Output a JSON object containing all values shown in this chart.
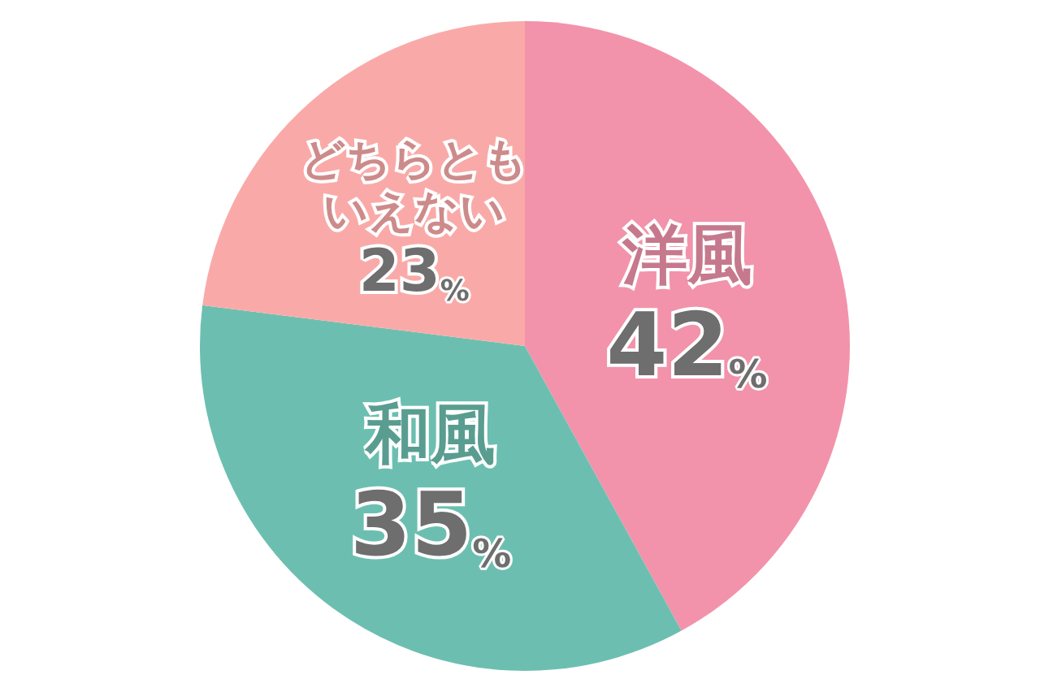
{
  "chart_data": {
    "type": "pie",
    "categories": [
      "洋風",
      "和風",
      "どちらともいえない"
    ],
    "values": [
      42,
      35,
      23
    ],
    "value_labels": [
      "42%",
      "35%",
      "23%"
    ],
    "colors": [
      "#f293ab",
      "#6cbfb0",
      "#f9aaa8"
    ]
  }
}
